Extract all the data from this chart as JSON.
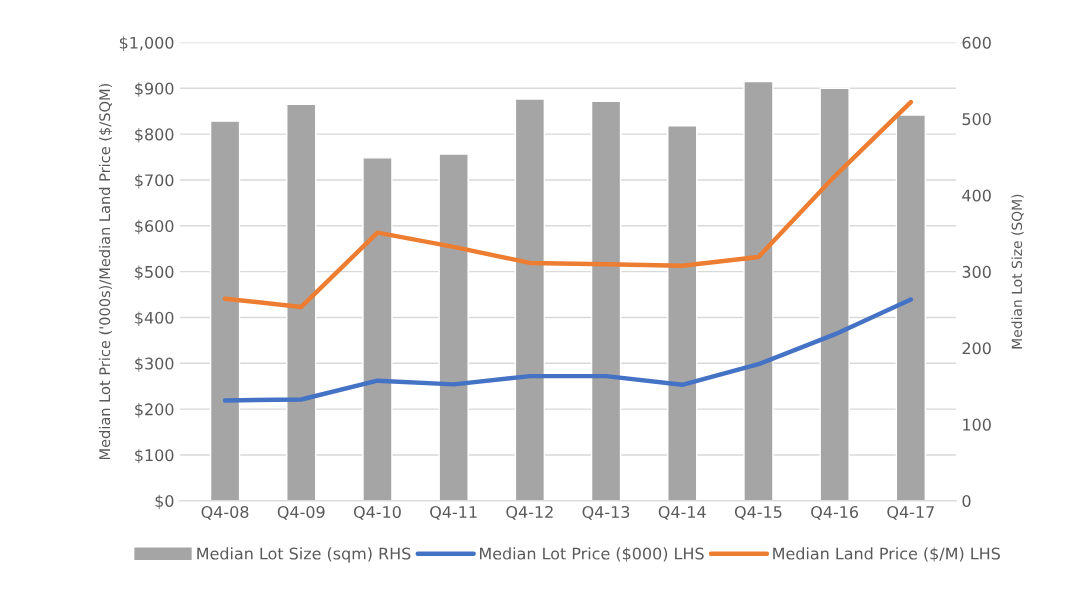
{
  "chart_data": {
    "type": "bar",
    "categories": [
      "Q4-08",
      "Q4-09",
      "Q4-10",
      "Q4-11",
      "Q4-12",
      "Q4-13",
      "Q4-14",
      "Q4-15",
      "Q4-16",
      "Q4-17"
    ],
    "series": [
      {
        "name": "Median Lot Size (sqm) RHS",
        "axis": "y2",
        "color": "#a5a5a5",
        "values": [
          497,
          519,
          449,
          454,
          526,
          523,
          491,
          549,
          540,
          505
        ]
      },
      {
        "name": "Median Lot Price ($000) LHS",
        "type": "line",
        "color": "#4472c4",
        "values": [
          219,
          221,
          262,
          254,
          272,
          272,
          253,
          298,
          363,
          439
        ]
      },
      {
        "name": "Median Land Price ($/M) LHS",
        "type": "line",
        "color": "#ed7d31",
        "values": [
          441,
          423,
          585,
          554,
          519,
          516,
          513,
          532,
          708,
          870
        ]
      }
    ],
    "ylabel": "Median Lot Price ('000s)/Median Land Price ($/SQM)",
    "y2label": "Median Lot Size (SQM)",
    "ylim": [
      0,
      1000
    ],
    "yticks": [
      {
        "value": 0,
        "label": "$0"
      },
      {
        "value": 100,
        "label": "$100"
      },
      {
        "value": 200,
        "label": "$200"
      },
      {
        "value": 300,
        "label": "$300"
      },
      {
        "value": 400,
        "label": "$400"
      },
      {
        "value": 500,
        "label": "$500"
      },
      {
        "value": 600,
        "label": "$600"
      },
      {
        "value": 700,
        "label": "$700"
      },
      {
        "value": 800,
        "label": "$800"
      },
      {
        "value": 900,
        "label": "$900"
      },
      {
        "value": 1000,
        "label": "$1,000"
      }
    ],
    "y2lim": [
      0,
      600
    ],
    "y2ticks": [
      0,
      100,
      200,
      300,
      400,
      500,
      600
    ],
    "grid": "y",
    "legend": "bottom",
    "line_style": "solid",
    "marker": "none"
  }
}
